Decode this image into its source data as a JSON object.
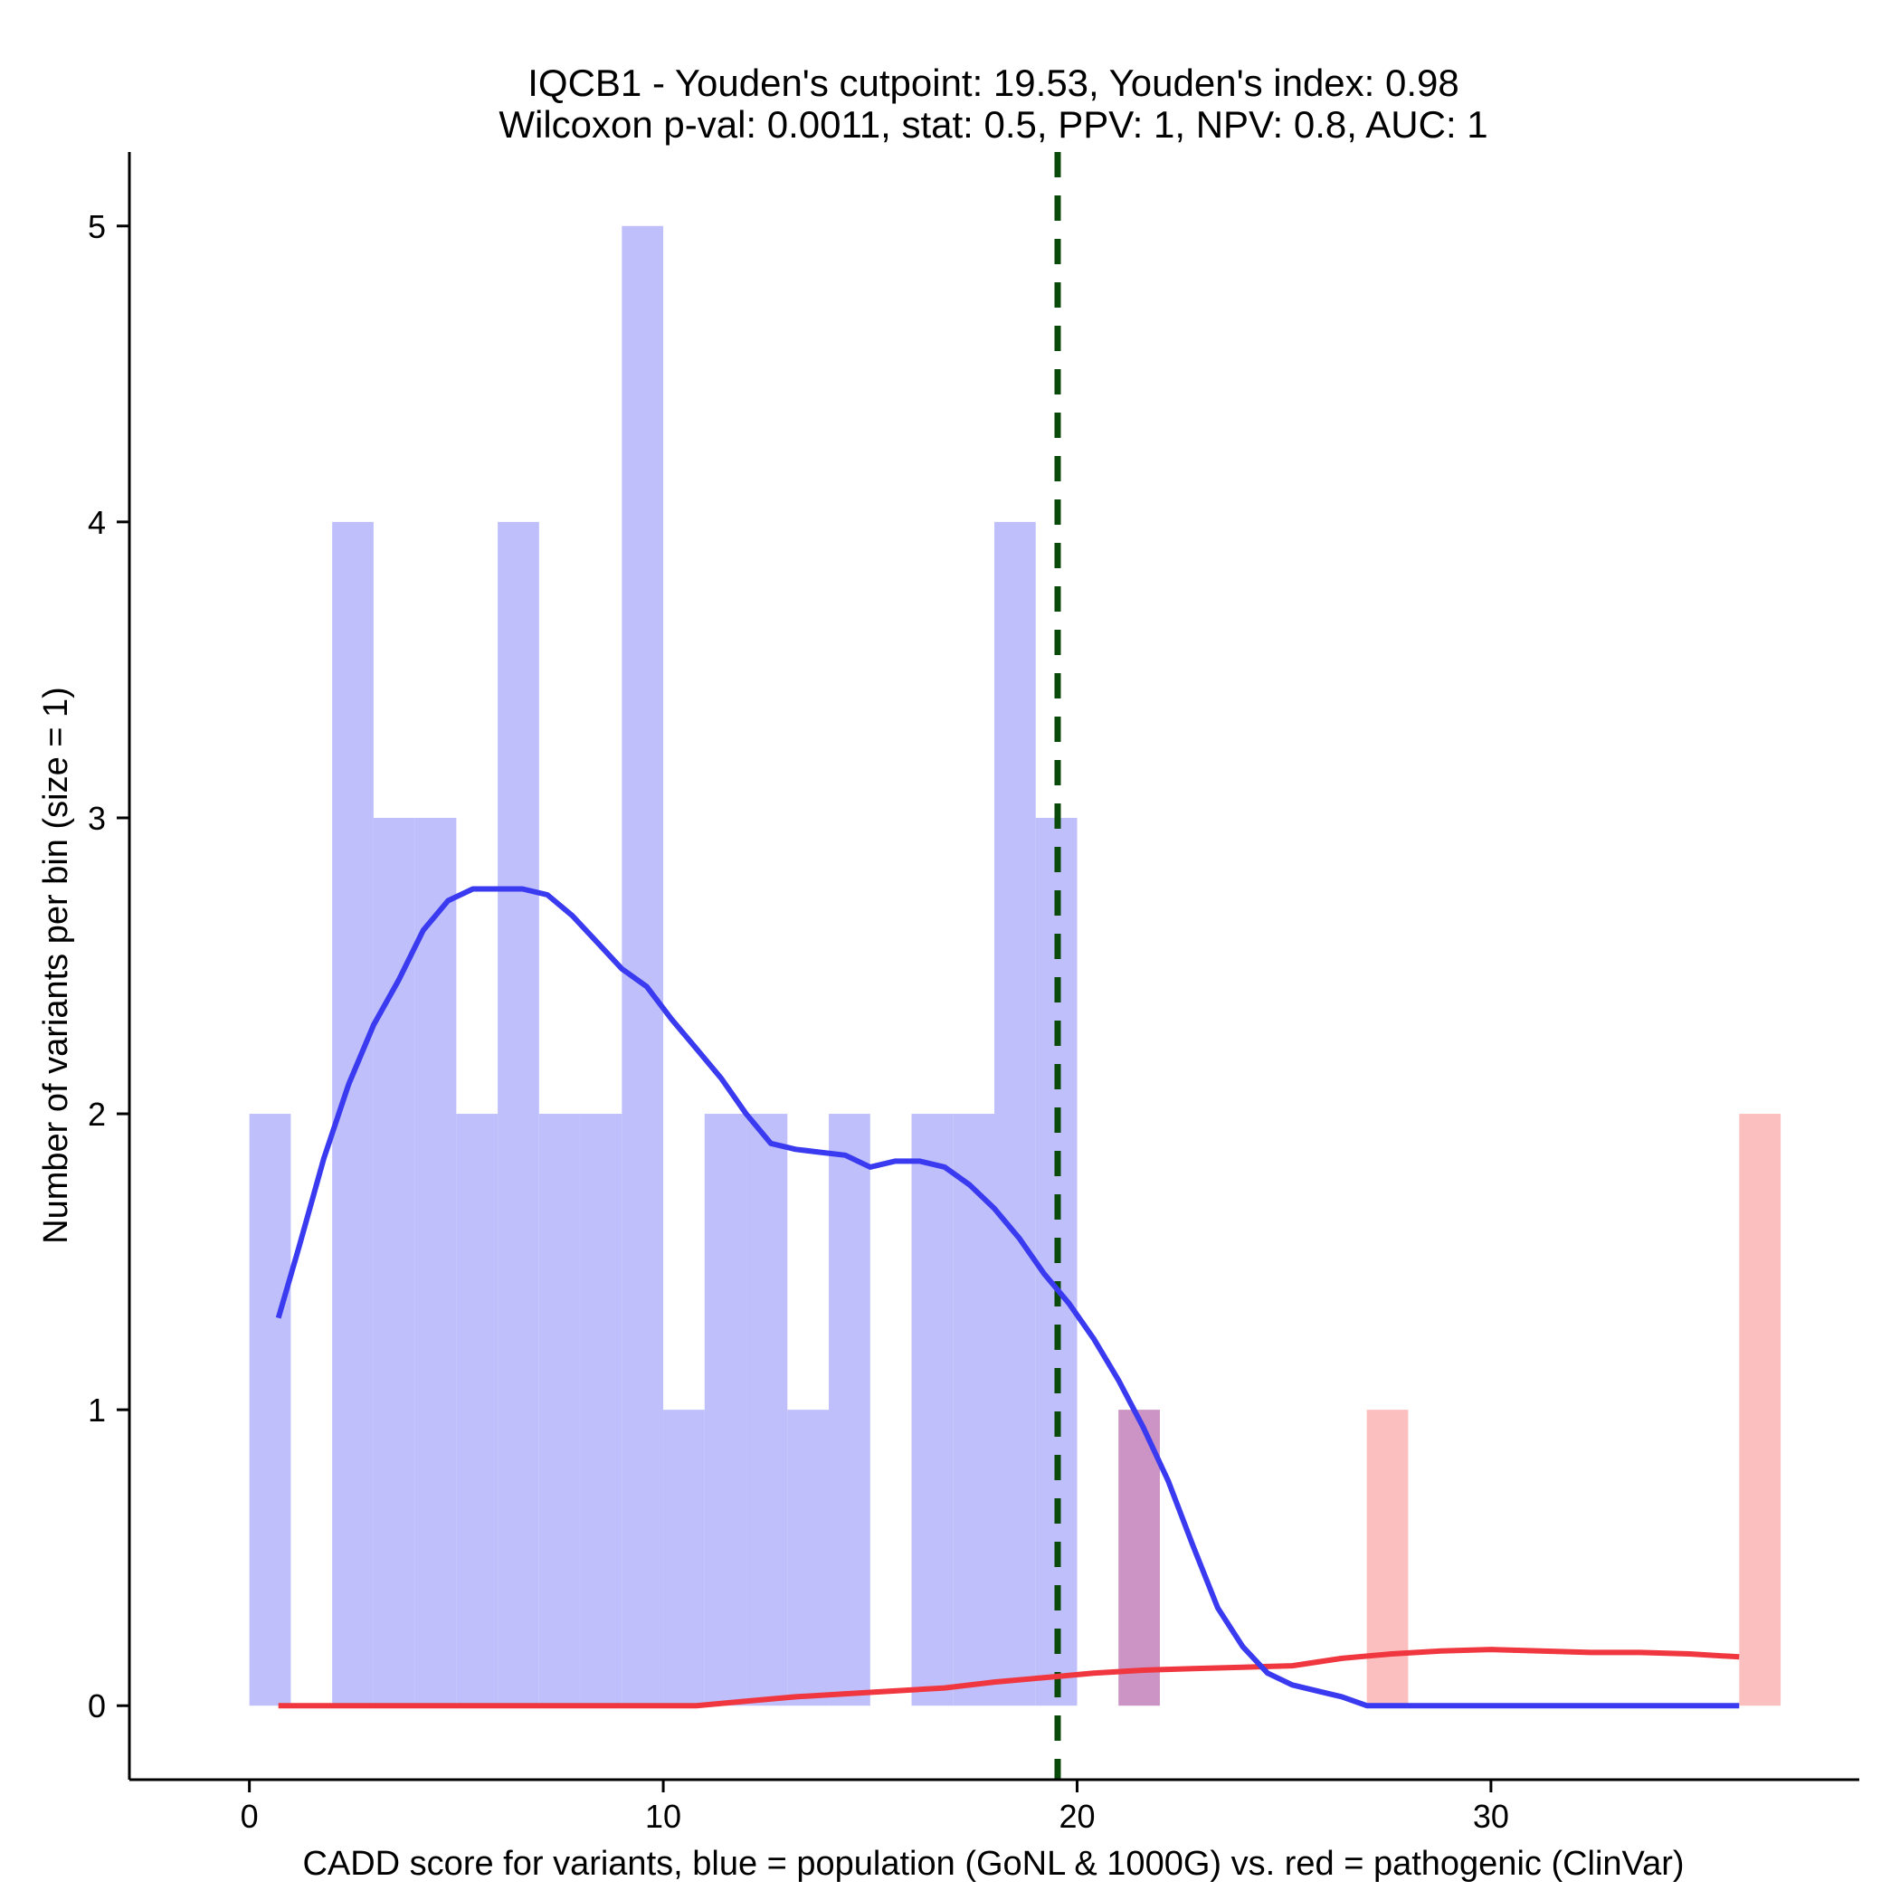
{
  "chart_data": {
    "type": "histogram",
    "title_line1": "IQCB1 - Youden's cutpoint: 19.53, Youden's index: 0.98",
    "title_line2": "Wilcoxon p-val: 0.0011, stat: 0.5, PPV: 1, NPV: 0.8, AUC: 1",
    "xlabel": "CADD score for variants, blue = population (GoNL & 1000G) vs. red = pathogenic (ClinVar)",
    "ylabel": "Number of variants per bin (size = 1)",
    "xlim": [
      -2.9,
      38.9
    ],
    "ylim": [
      -0.25,
      5.25
    ],
    "x_ticks": [
      0,
      10,
      20,
      30
    ],
    "x_tick_labels": [
      "0",
      "10",
      "20",
      "30"
    ],
    "y_ticks": [
      0,
      1,
      2,
      3,
      4,
      5
    ],
    "y_tick_labels": [
      "0",
      "1",
      "2",
      "3",
      "4",
      "5"
    ],
    "bin_width": 1,
    "cutpoint": 19.53,
    "colors": {
      "population_bar": "#bfbffb",
      "pathogenic_bar": "#fcbfbf",
      "overlap_bar": "#cc94c4",
      "population_line": "#3a3af0",
      "pathogenic_line": "#f0363e",
      "cutpoint_line": "#0a4a0a"
    },
    "series": [
      {
        "name": "population (GoNL & 1000G)",
        "bins": [
          {
            "start": 0,
            "count": 2
          },
          {
            "start": 2,
            "count": 4
          },
          {
            "start": 3,
            "count": 3
          },
          {
            "start": 4,
            "count": 3
          },
          {
            "start": 5,
            "count": 2
          },
          {
            "start": 6,
            "count": 4
          },
          {
            "start": 7,
            "count": 2
          },
          {
            "start": 8,
            "count": 2
          },
          {
            "start": 9,
            "count": 5
          },
          {
            "start": 10,
            "count": 1
          },
          {
            "start": 11,
            "count": 2
          },
          {
            "start": 12,
            "count": 2
          },
          {
            "start": 13,
            "count": 1
          },
          {
            "start": 14,
            "count": 2
          },
          {
            "start": 16,
            "count": 2
          },
          {
            "start": 17,
            "count": 2
          },
          {
            "start": 18,
            "count": 4
          },
          {
            "start": 19,
            "count": 3
          },
          {
            "start": 21,
            "count": 1
          }
        ],
        "density_curve": [
          [
            0.7,
            1.31
          ],
          [
            1.2,
            1.55
          ],
          [
            1.8,
            1.85
          ],
          [
            2.4,
            2.1
          ],
          [
            3.0,
            2.3
          ],
          [
            3.6,
            2.45
          ],
          [
            4.2,
            2.62
          ],
          [
            4.8,
            2.72
          ],
          [
            5.4,
            2.76
          ],
          [
            6.0,
            2.76
          ],
          [
            6.6,
            2.76
          ],
          [
            7.2,
            2.74
          ],
          [
            7.8,
            2.67
          ],
          [
            8.4,
            2.58
          ],
          [
            9.0,
            2.49
          ],
          [
            9.6,
            2.43
          ],
          [
            10.2,
            2.32
          ],
          [
            10.8,
            2.22
          ],
          [
            11.4,
            2.12
          ],
          [
            12.0,
            2.0
          ],
          [
            12.6,
            1.9
          ],
          [
            13.2,
            1.88
          ],
          [
            13.8,
            1.87
          ],
          [
            14.4,
            1.86
          ],
          [
            15.0,
            1.82
          ],
          [
            15.6,
            1.84
          ],
          [
            16.2,
            1.84
          ],
          [
            16.8,
            1.82
          ],
          [
            17.4,
            1.76
          ],
          [
            18.0,
            1.68
          ],
          [
            18.6,
            1.58
          ],
          [
            19.2,
            1.46
          ],
          [
            19.8,
            1.36
          ],
          [
            20.4,
            1.24
          ],
          [
            21.0,
            1.1
          ],
          [
            21.6,
            0.94
          ],
          [
            22.2,
            0.76
          ],
          [
            22.8,
            0.54
          ],
          [
            23.4,
            0.33
          ],
          [
            24.0,
            0.2
          ],
          [
            24.6,
            0.11
          ],
          [
            25.2,
            0.07
          ],
          [
            25.8,
            0.05
          ],
          [
            26.4,
            0.03
          ],
          [
            27.0,
            0.0
          ],
          [
            36.0,
            0.0
          ]
        ]
      },
      {
        "name": "pathogenic (ClinVar)",
        "bins": [
          {
            "start": 21,
            "count": 1
          },
          {
            "start": 27,
            "count": 1
          },
          {
            "start": 36,
            "count": 2
          }
        ],
        "density_curve": [
          [
            0.7,
            0.0
          ],
          [
            10.8,
            0.0
          ],
          [
            12.0,
            0.015
          ],
          [
            13.2,
            0.03
          ],
          [
            14.4,
            0.04
          ],
          [
            15.6,
            0.05
          ],
          [
            16.8,
            0.06
          ],
          [
            18.0,
            0.08
          ],
          [
            19.2,
            0.095
          ],
          [
            20.4,
            0.11
          ],
          [
            21.6,
            0.12
          ],
          [
            22.8,
            0.125
          ],
          [
            24.0,
            0.13
          ],
          [
            25.2,
            0.135
          ],
          [
            26.4,
            0.16
          ],
          [
            27.6,
            0.175
          ],
          [
            28.8,
            0.185
          ],
          [
            30.0,
            0.19
          ],
          [
            31.2,
            0.185
          ],
          [
            32.4,
            0.18
          ],
          [
            33.6,
            0.18
          ],
          [
            34.8,
            0.175
          ],
          [
            36.0,
            0.165
          ]
        ]
      }
    ]
  }
}
